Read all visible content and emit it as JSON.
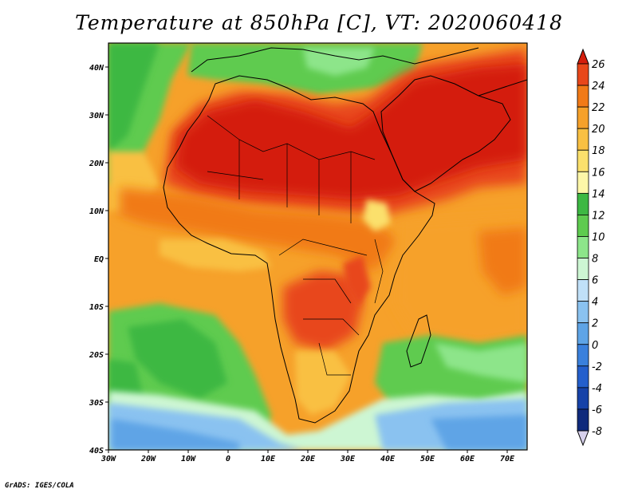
{
  "title": "Temperature at 850hPa [C], VT: 2020060418",
  "credit": "GrADS: IGES/COLA",
  "map": {
    "region": "Africa",
    "projection": "latlon",
    "lon_range": [
      -30,
      75
    ],
    "lat_range": [
      -40,
      45
    ],
    "x_ticks": [
      "30W",
      "20W",
      "10W",
      "0",
      "10E",
      "20E",
      "30E",
      "40E",
      "50E",
      "60E",
      "70E"
    ],
    "y_ticks": [
      "40N",
      "30N",
      "20N",
      "10N",
      "EQ",
      "10S",
      "20S",
      "30S",
      "40S"
    ]
  },
  "colorbar": {
    "labels": [
      "26",
      "24",
      "22",
      "20",
      "18",
      "16",
      "14",
      "12",
      "10",
      "8",
      "6",
      "4",
      "2",
      "0",
      "-2",
      "-4",
      "-6",
      "-8"
    ],
    "colors": [
      "#d41e0d",
      "#e8471a",
      "#f17a17",
      "#f6a12a",
      "#f9c042",
      "#fbe06c",
      "#fdf7a8",
      "#3db843",
      "#5ecb4f",
      "#8de58a",
      "#cdf6d3",
      "#c0e0f8",
      "#8ac2f0",
      "#5ea4e6",
      "#3a80dc",
      "#245fcc",
      "#1642a8",
      "#0f2a7c",
      "#d6d0ec"
    ]
  }
}
